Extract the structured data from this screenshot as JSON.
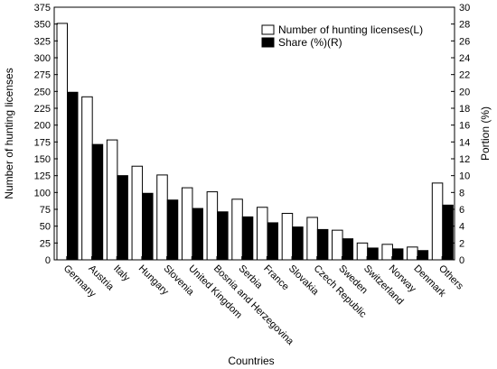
{
  "chart_data": {
    "type": "bar",
    "xlabel": "Countries",
    "ylabel_left": "Number of hunting licenses",
    "ylabel_right": "Portion (%)",
    "ylim_left": [
      0,
      375
    ],
    "ylim_right": [
      0,
      30
    ],
    "yticks_left": [
      "0",
      "25",
      "50",
      "75",
      "100",
      "125",
      "150",
      "175",
      "200",
      "225",
      "250",
      "275",
      "300",
      "325",
      "350",
      "375"
    ],
    "yticks_right": [
      "0",
      "2",
      "4",
      "6",
      "8",
      "10",
      "12",
      "14",
      "16",
      "18",
      "20",
      "22",
      "24",
      "26",
      "28",
      "30"
    ],
    "categories": [
      "Germany",
      "Austria",
      "Italy",
      "Hungary",
      "Slovenia",
      "United Kingdom",
      "Bosnia and Herzegovina",
      "Serbia",
      "France",
      "Slovakia",
      "Czech Republic",
      "Sweden",
      "Switzerland",
      "Norway",
      "Denmark",
      "Others"
    ],
    "series": [
      {
        "name": "Number of hunting licenses(L)",
        "axis": "left",
        "color": "#ffffff",
        "values": [
          351,
          242,
          178,
          139,
          126,
          107,
          101,
          90,
          78,
          69,
          63,
          44,
          25,
          23,
          19,
          114
        ]
      },
      {
        "name": "Share (%)(R)",
        "axis": "right",
        "color": "#000000",
        "values": [
          19.9,
          13.7,
          10.0,
          7.9,
          7.1,
          6.1,
          5.7,
          5.1,
          4.4,
          3.9,
          3.6,
          2.5,
          1.4,
          1.3,
          1.1,
          6.5
        ]
      }
    ],
    "legend_position": "top-right",
    "grid": false
  }
}
